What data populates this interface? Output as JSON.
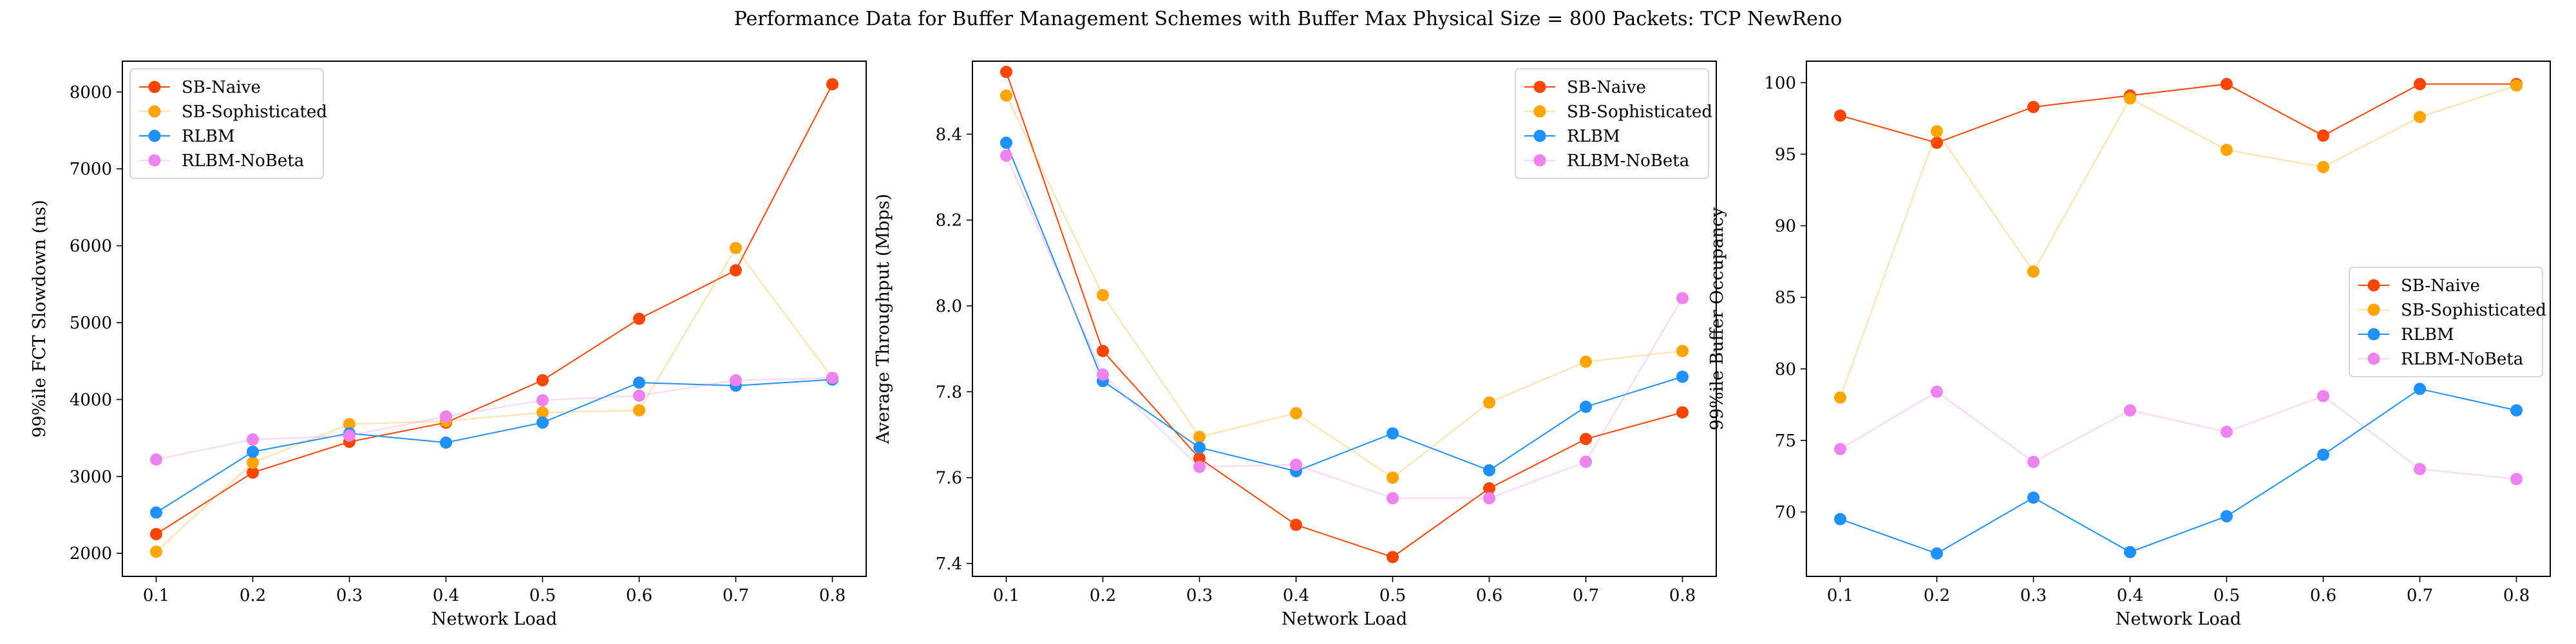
{
  "figure": {
    "title": "Performance Data for Buffer Management Schemes with Buffer Max Physical Size = 800 Packets: TCP NewReno"
  },
  "chart_data": [
    {
      "type": "line",
      "xlabel": "Network Load",
      "ylabel": "99%ile FCT Slowdown (ns)",
      "x": [
        0.1,
        0.2,
        0.3,
        0.4,
        0.5,
        0.6,
        0.7,
        0.8
      ],
      "xticks": [
        "0.1",
        "0.2",
        "0.3",
        "0.4",
        "0.5",
        "0.6",
        "0.7",
        "0.8"
      ],
      "xlim": [
        0.065,
        0.835
      ],
      "ylim": [
        1700,
        8400
      ],
      "yticks": [
        2000,
        3000,
        4000,
        5000,
        6000,
        7000,
        8000
      ],
      "legend_loc": "upper-left",
      "grid": false,
      "series": [
        {
          "name": "SB-Naive",
          "color": "#ff4500",
          "values": [
            2250,
            3050,
            3450,
            3700,
            4250,
            5050,
            5680,
            8100
          ]
        },
        {
          "name": "SB-Sophisticated",
          "color": "#ffa500",
          "values": [
            2020,
            3180,
            3680,
            3720,
            3830,
            3860,
            5970,
            4280
          ]
        },
        {
          "name": "RLBM",
          "color": "#1e90ff",
          "values": [
            2530,
            3320,
            3560,
            3440,
            3700,
            4220,
            4180,
            4260
          ]
        },
        {
          "name": "RLBM-NoBeta",
          "color": "#ee82ee",
          "values": [
            3220,
            3480,
            3530,
            3780,
            3990,
            4050,
            4250,
            4280
          ]
        }
      ]
    },
    {
      "type": "line",
      "xlabel": "Network Load",
      "ylabel": "Average Throughput (Mbps)",
      "x": [
        0.1,
        0.2,
        0.3,
        0.4,
        0.5,
        0.6,
        0.7,
        0.8
      ],
      "xticks": [
        "0.1",
        "0.2",
        "0.3",
        "0.4",
        "0.5",
        "0.6",
        "0.7",
        "0.8"
      ],
      "xlim": [
        0.065,
        0.835
      ],
      "ylim": [
        7.37,
        8.57
      ],
      "yticks": [
        7.4,
        7.6,
        7.8,
        8.0,
        8.2,
        8.4
      ],
      "yticklabels": [
        "7.4",
        "7.6",
        "7.8",
        "8.0",
        "8.2",
        "8.4"
      ],
      "legend_loc": "upper-right",
      "grid": false,
      "series": [
        {
          "name": "SB-Naive",
          "color": "#ff4500",
          "values": [
            8.545,
            7.895,
            7.645,
            7.49,
            7.415,
            7.575,
            7.69,
            7.752
          ]
        },
        {
          "name": "SB-Sophisticated",
          "color": "#ffa500",
          "values": [
            8.49,
            8.025,
            7.695,
            7.75,
            7.6,
            7.775,
            7.87,
            7.895
          ]
        },
        {
          "name": "RLBM",
          "color": "#1e90ff",
          "values": [
            8.38,
            7.825,
            7.67,
            7.615,
            7.703,
            7.617,
            7.765,
            7.835
          ]
        },
        {
          "name": "RLBM-NoBeta",
          "color": "#ee82ee",
          "values": [
            8.35,
            7.84,
            7.625,
            7.63,
            7.552,
            7.552,
            7.637,
            8.018
          ]
        }
      ]
    },
    {
      "type": "line",
      "xlabel": "Network Load",
      "ylabel": "99%ile Buffer Occupancy",
      "x": [
        0.1,
        0.2,
        0.3,
        0.4,
        0.5,
        0.6,
        0.7,
        0.8
      ],
      "xticks": [
        "0.1",
        "0.2",
        "0.3",
        "0.4",
        "0.5",
        "0.6",
        "0.7",
        "0.8"
      ],
      "xlim": [
        0.065,
        0.835
      ],
      "ylim": [
        65.5,
        101.5
      ],
      "yticks": [
        70,
        75,
        80,
        85,
        90,
        95,
        100
      ],
      "legend_loc": "center-right",
      "grid": false,
      "series": [
        {
          "name": "SB-Naive",
          "color": "#ff4500",
          "values": [
            97.7,
            95.8,
            98.3,
            99.1,
            99.9,
            96.3,
            99.9,
            99.9
          ]
        },
        {
          "name": "SB-Sophisticated",
          "color": "#ffa500",
          "values": [
            78.0,
            96.6,
            86.8,
            98.9,
            95.3,
            94.1,
            97.6,
            99.8
          ]
        },
        {
          "name": "RLBM",
          "color": "#1e90ff",
          "values": [
            69.5,
            67.1,
            71.0,
            67.2,
            69.7,
            74.0,
            78.6,
            77.1
          ]
        },
        {
          "name": "RLBM-NoBeta",
          "color": "#ee82ee",
          "values": [
            74.4,
            78.4,
            73.5,
            77.1,
            75.6,
            78.1,
            73.0,
            72.3
          ]
        }
      ]
    }
  ]
}
